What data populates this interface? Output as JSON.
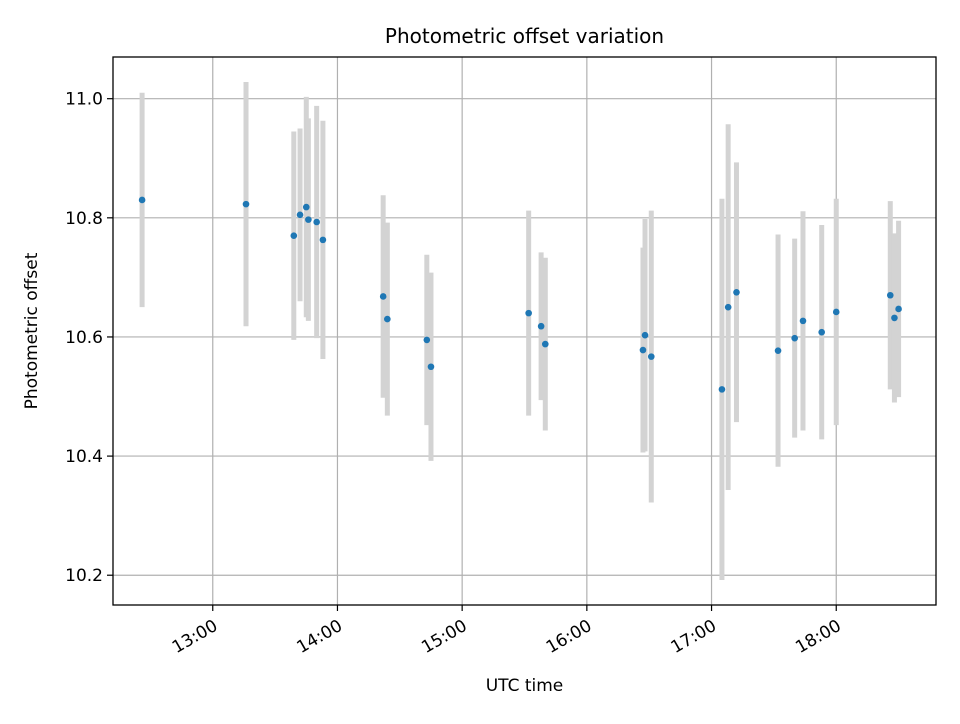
{
  "chart_data": {
    "type": "scatter",
    "title": "Photometric offset variation",
    "xlabel": "UTC time",
    "ylabel": "Photometric offset",
    "xlim": [
      "12:12",
      "18:48"
    ],
    "ylim": [
      10.15,
      11.07
    ],
    "x_ticks": [
      "13:00",
      "14:00",
      "15:00",
      "16:00",
      "17:00",
      "18:00"
    ],
    "y_ticks": [
      "10.2",
      "10.4",
      "10.6",
      "10.8",
      "11.0"
    ],
    "grid": true,
    "marker_color": "#1f77b4",
    "errorbar_color": "#d3d3d3",
    "points": [
      {
        "t": "12:26",
        "y": 10.83,
        "err": 0.18
      },
      {
        "t": "13:16",
        "y": 10.823,
        "err": 0.205
      },
      {
        "t": "13:39",
        "y": 10.77,
        "err": 0.175
      },
      {
        "t": "13:42",
        "y": 10.805,
        "err": 0.145
      },
      {
        "t": "13:45",
        "y": 10.818,
        "err": 0.185
      },
      {
        "t": "13:46",
        "y": 10.797,
        "err": 0.17
      },
      {
        "t": "13:50",
        "y": 10.793,
        "err": 0.195
      },
      {
        "t": "13:53",
        "y": 10.763,
        "err": 0.2
      },
      {
        "t": "14:22",
        "y": 10.668,
        "err": 0.17
      },
      {
        "t": "14:24",
        "y": 10.63,
        "err": 0.162
      },
      {
        "t": "14:43",
        "y": 10.595,
        "err": 0.143
      },
      {
        "t": "14:45",
        "y": 10.55,
        "err": 0.158
      },
      {
        "t": "15:32",
        "y": 10.64,
        "err": 0.172
      },
      {
        "t": "15:38",
        "y": 10.618,
        "err": 0.124
      },
      {
        "t": "15:40",
        "y": 10.588,
        "err": 0.145
      },
      {
        "t": "16:27",
        "y": 10.578,
        "err": 0.172
      },
      {
        "t": "16:28",
        "y": 10.603,
        "err": 0.195
      },
      {
        "t": "16:31",
        "y": 10.567,
        "err": 0.245
      },
      {
        "t": "17:05",
        "y": 10.512,
        "err": 0.32
      },
      {
        "t": "17:08",
        "y": 10.65,
        "err": 0.307
      },
      {
        "t": "17:12",
        "y": 10.675,
        "err": 0.218
      },
      {
        "t": "17:32",
        "y": 10.577,
        "err": 0.195
      },
      {
        "t": "17:40",
        "y": 10.598,
        "err": 0.167
      },
      {
        "t": "17:44",
        "y": 10.627,
        "err": 0.184
      },
      {
        "t": "17:53",
        "y": 10.608,
        "err": 0.18
      },
      {
        "t": "18:00",
        "y": 10.642,
        "err": 0.19
      },
      {
        "t": "18:26",
        "y": 10.67,
        "err": 0.158
      },
      {
        "t": "18:28",
        "y": 10.632,
        "err": 0.142
      },
      {
        "t": "18:30",
        "y": 10.647,
        "err": 0.148
      }
    ]
  }
}
